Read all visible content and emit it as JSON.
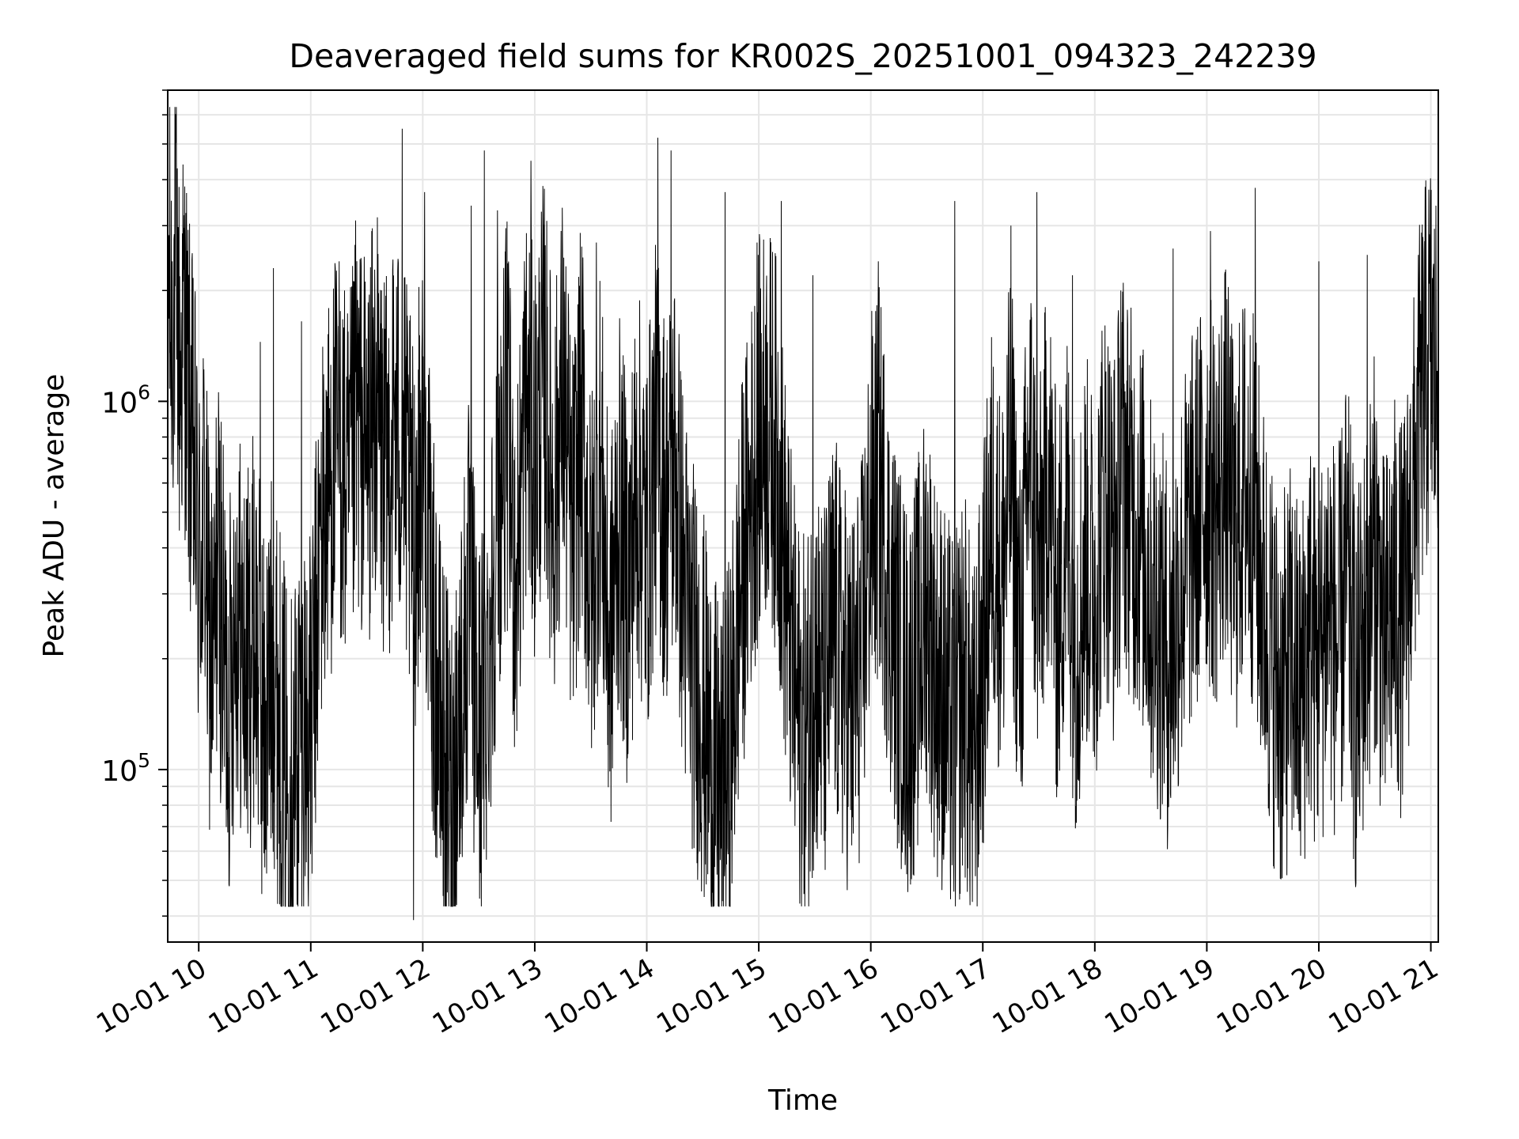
{
  "chart_data": {
    "type": "line",
    "title": "Deaveraged field sums for KR002S_20251001_094323_242239",
    "xlabel": "Time",
    "ylabel": "Peak ADU - average",
    "yscale": "log",
    "xlim": [
      "2025-10-01T09:43:23",
      "2025-10-01T21:04:00"
    ],
    "ylim": [
      34000,
      7000000
    ],
    "grid": true,
    "x_ticks": [
      {
        "t": "2025-10-01T10:00",
        "label": "10-01 10"
      },
      {
        "t": "2025-10-01T11:00",
        "label": "10-01 11"
      },
      {
        "t": "2025-10-01T12:00",
        "label": "10-01 12"
      },
      {
        "t": "2025-10-01T13:00",
        "label": "10-01 13"
      },
      {
        "t": "2025-10-01T14:00",
        "label": "10-01 14"
      },
      {
        "t": "2025-10-01T15:00",
        "label": "10-01 15"
      },
      {
        "t": "2025-10-01T16:00",
        "label": "10-01 16"
      },
      {
        "t": "2025-10-01T17:00",
        "label": "10-01 17"
      },
      {
        "t": "2025-10-01T18:00",
        "label": "10-01 18"
      },
      {
        "t": "2025-10-01T19:00",
        "label": "10-01 19"
      },
      {
        "t": "2025-10-01T20:00",
        "label": "10-01 20"
      },
      {
        "t": "2025-10-01T21:00",
        "label": "10-01 21"
      }
    ],
    "y_ticks": [
      {
        "value": 100000,
        "base": "10",
        "exp": "5"
      },
      {
        "value": 1000000,
        "base": "10",
        "exp": "6"
      }
    ],
    "series": [
      {
        "color": "#000000",
        "points": [
          [
            "09:43",
            3000000
          ],
          [
            "09:45",
            1600000
          ],
          [
            "09:48",
            2200000
          ],
          [
            "09:50",
            1100000
          ],
          [
            "09:52",
            1700000
          ],
          [
            "09:55",
            900000
          ],
          [
            "09:58",
            600000
          ],
          [
            "10:00",
            350000
          ],
          [
            "10:03",
            500000
          ],
          [
            "10:05",
            250000
          ],
          [
            "10:08",
            180000
          ],
          [
            "10:10",
            400000
          ],
          [
            "10:13",
            220000
          ],
          [
            "10:16",
            150000
          ],
          [
            "10:20",
            300000
          ],
          [
            "10:25",
            180000
          ],
          [
            "10:30",
            250000
          ],
          [
            "10:35",
            130000
          ],
          [
            "10:40",
            200000
          ],
          [
            "10:45",
            110000
          ],
          [
            "10:50",
            90000
          ],
          [
            "10:55",
            150000
          ],
          [
            "11:00",
            120000
          ],
          [
            "11:05",
            400000
          ],
          [
            "11:10",
            600000
          ],
          [
            "11:15",
            800000
          ],
          [
            "11:20",
            500000
          ],
          [
            "11:25",
            900000
          ],
          [
            "11:30",
            700000
          ],
          [
            "11:35",
            1000000
          ],
          [
            "11:40",
            600000
          ],
          [
            "11:45",
            900000
          ],
          [
            "11:50",
            700000
          ],
          [
            "11:55",
            400000
          ],
          [
            "12:00",
            800000
          ],
          [
            "12:05",
            250000
          ],
          [
            "12:10",
            120000
          ],
          [
            "12:15",
            80000
          ],
          [
            "12:20",
            150000
          ],
          [
            "12:25",
            300000
          ],
          [
            "12:30",
            120000
          ],
          [
            "12:35",
            200000
          ],
          [
            "12:40",
            500000
          ],
          [
            "12:45",
            900000
          ],
          [
            "12:50",
            300000
          ],
          [
            "12:55",
            1000000
          ],
          [
            "13:00",
            700000
          ],
          [
            "13:05",
            1200000
          ],
          [
            "13:10",
            500000
          ],
          [
            "13:15",
            1100000
          ],
          [
            "13:20",
            400000
          ],
          [
            "13:25",
            900000
          ],
          [
            "13:30",
            300000
          ],
          [
            "13:35",
            700000
          ],
          [
            "13:40",
            200000
          ],
          [
            "13:45",
            500000
          ],
          [
            "13:50",
            300000
          ],
          [
            "13:55",
            600000
          ],
          [
            "14:00",
            400000
          ],
          [
            "14:05",
            800000
          ],
          [
            "14:10",
            500000
          ],
          [
            "14:15",
            700000
          ],
          [
            "14:20",
            300000
          ],
          [
            "14:25",
            200000
          ],
          [
            "14:30",
            150000
          ],
          [
            "14:35",
            100000
          ],
          [
            "14:40",
            80000
          ],
          [
            "14:45",
            120000
          ],
          [
            "14:50",
            300000
          ],
          [
            "14:55",
            500000
          ],
          [
            "15:00",
            800000
          ],
          [
            "15:05",
            900000
          ],
          [
            "15:10",
            700000
          ],
          [
            "15:15",
            300000
          ],
          [
            "15:20",
            150000
          ],
          [
            "15:25",
            120000
          ],
          [
            "15:30",
            200000
          ],
          [
            "15:35",
            150000
          ],
          [
            "15:40",
            250000
          ],
          [
            "15:45",
            180000
          ],
          [
            "15:50",
            150000
          ],
          [
            "15:55",
            200000
          ],
          [
            "16:00",
            500000
          ],
          [
            "16:05",
            600000
          ],
          [
            "16:10",
            300000
          ],
          [
            "16:15",
            200000
          ],
          [
            "16:20",
            150000
          ],
          [
            "16:25",
            200000
          ],
          [
            "16:30",
            300000
          ],
          [
            "16:35",
            180000
          ],
          [
            "16:40",
            150000
          ],
          [
            "16:45",
            120000
          ],
          [
            "16:50",
            180000
          ],
          [
            "16:55",
            100000
          ],
          [
            "17:00",
            200000
          ],
          [
            "17:05",
            500000
          ],
          [
            "17:10",
            300000
          ],
          [
            "17:15",
            700000
          ],
          [
            "17:20",
            200000
          ],
          [
            "17:25",
            800000
          ],
          [
            "17:30",
            300000
          ],
          [
            "17:35",
            700000
          ],
          [
            "17:40",
            250000
          ],
          [
            "17:45",
            500000
          ],
          [
            "17:50",
            220000
          ],
          [
            "17:55",
            400000
          ],
          [
            "18:00",
            300000
          ],
          [
            "18:05",
            600000
          ],
          [
            "18:10",
            400000
          ],
          [
            "18:15",
            700000
          ],
          [
            "18:20",
            500000
          ],
          [
            "18:25",
            450000
          ],
          [
            "18:30",
            300000
          ],
          [
            "18:35",
            250000
          ],
          [
            "18:40",
            200000
          ],
          [
            "18:45",
            300000
          ],
          [
            "18:50",
            400000
          ],
          [
            "18:55",
            500000
          ],
          [
            "19:00",
            600000
          ],
          [
            "19:05",
            500000
          ],
          [
            "19:10",
            700000
          ],
          [
            "19:15",
            400000
          ],
          [
            "19:20",
            600000
          ],
          [
            "19:25",
            500000
          ],
          [
            "19:30",
            300000
          ],
          [
            "19:35",
            200000
          ],
          [
            "19:40",
            150000
          ],
          [
            "19:45",
            200000
          ],
          [
            "19:50",
            150000
          ],
          [
            "19:55",
            250000
          ],
          [
            "20:00",
            180000
          ],
          [
            "20:05",
            300000
          ],
          [
            "20:10",
            200000
          ],
          [
            "20:15",
            350000
          ],
          [
            "20:20",
            150000
          ],
          [
            "20:25",
            250000
          ],
          [
            "20:30",
            400000
          ],
          [
            "20:35",
            200000
          ],
          [
            "20:40",
            300000
          ],
          [
            "20:45",
            250000
          ],
          [
            "20:50",
            500000
          ],
          [
            "20:55",
            1000000
          ],
          [
            "21:00",
            1400000
          ],
          [
            "21:02",
            1100000
          ],
          [
            "21:04",
            1300000
          ]
        ]
      }
    ],
    "spikes": [
      [
        "09:53",
        2600000
      ],
      [
        "10:12",
        880000
      ],
      [
        "10:33",
        1450000
      ],
      [
        "10:40",
        2300000
      ],
      [
        "10:55",
        1650000
      ],
      [
        "11:24",
        3100000
      ],
      [
        "11:49",
        5500000
      ],
      [
        "11:55",
        39000
      ],
      [
        "12:01",
        3700000
      ],
      [
        "12:26",
        3400000
      ],
      [
        "12:33",
        4800000
      ],
      [
        "12:40",
        3300000
      ],
      [
        "12:58",
        4500000
      ],
      [
        "13:33",
        2700000
      ],
      [
        "14:06",
        5200000
      ],
      [
        "14:13",
        4800000
      ],
      [
        "14:42",
        3700000
      ],
      [
        "14:59",
        2700000
      ],
      [
        "15:12",
        3500000
      ],
      [
        "15:29",
        2200000
      ],
      [
        "16:04",
        2400000
      ],
      [
        "16:45",
        3500000
      ],
      [
        "17:15",
        3000000
      ],
      [
        "17:29",
        3700000
      ],
      [
        "17:48",
        2200000
      ],
      [
        "18:14",
        2000000
      ],
      [
        "18:42",
        2600000
      ],
      [
        "19:02",
        2900000
      ],
      [
        "19:26",
        3800000
      ],
      [
        "20:00",
        2400000
      ],
      [
        "20:26",
        2500000
      ],
      [
        "20:56",
        2000000
      ]
    ]
  }
}
